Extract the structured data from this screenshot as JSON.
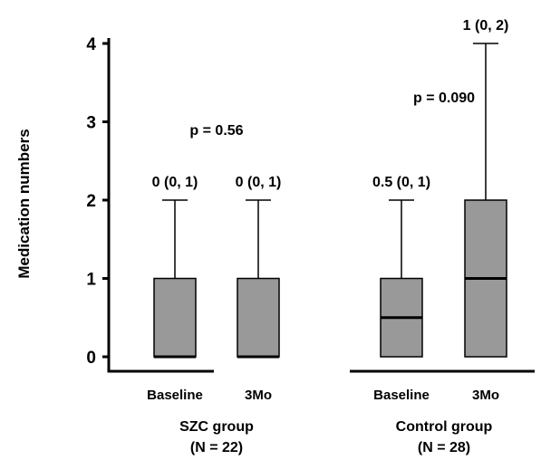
{
  "chart_data": {
    "type": "boxplot",
    "ylabel": "Medication numbers",
    "ylim": [
      0,
      4
    ],
    "yticks": [
      0,
      1,
      2,
      3,
      4
    ],
    "box_color": "#999999",
    "boxes": [
      {
        "label": "Baseline",
        "group": 0,
        "min": 0,
        "q1": 0,
        "median": 0,
        "q3": 1,
        "max": 2,
        "annotation": "0 (0, 1)"
      },
      {
        "label": "3Mo",
        "group": 0,
        "min": 0,
        "q1": 0,
        "median": 0,
        "q3": 1,
        "max": 2,
        "annotation": "0 (0, 1)"
      },
      {
        "label": "Baseline",
        "group": 1,
        "min": 0,
        "q1": 0,
        "median": 0.5,
        "q3": 1,
        "max": 2,
        "annotation": "0.5 (0, 1)"
      },
      {
        "label": "3Mo",
        "group": 1,
        "min": 0,
        "q1": 0,
        "median": 1,
        "q3": 2,
        "max": 4,
        "annotation": "1 (0, 2)"
      }
    ],
    "groups": [
      {
        "name": "SZC group",
        "n": "(N = 22)",
        "p_value": "p = 0.56"
      },
      {
        "name": "Control group",
        "n": "(N = 28)",
        "p_value": "p = 0.090"
      }
    ]
  }
}
